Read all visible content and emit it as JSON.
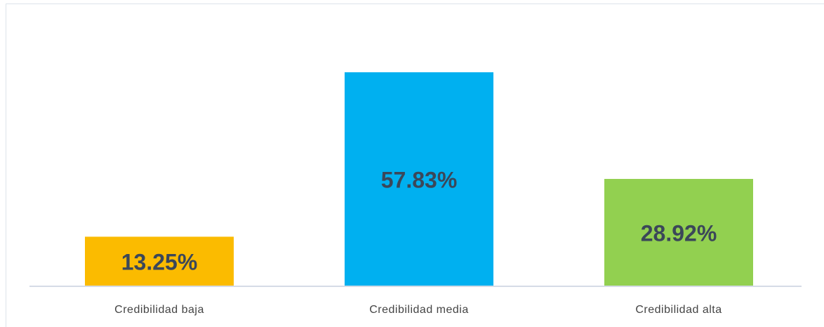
{
  "chart_data": {
    "type": "bar",
    "categories": [
      "Credibilidad baja",
      "Credibilidad media",
      "Credibilidad alta"
    ],
    "values": [
      13.25,
      57.83,
      28.92
    ],
    "value_labels": [
      "13.25%",
      "57.83%",
      "28.92%"
    ],
    "colors": [
      "#fbbb00",
      "#00b0f0",
      "#92d050"
    ]
  }
}
